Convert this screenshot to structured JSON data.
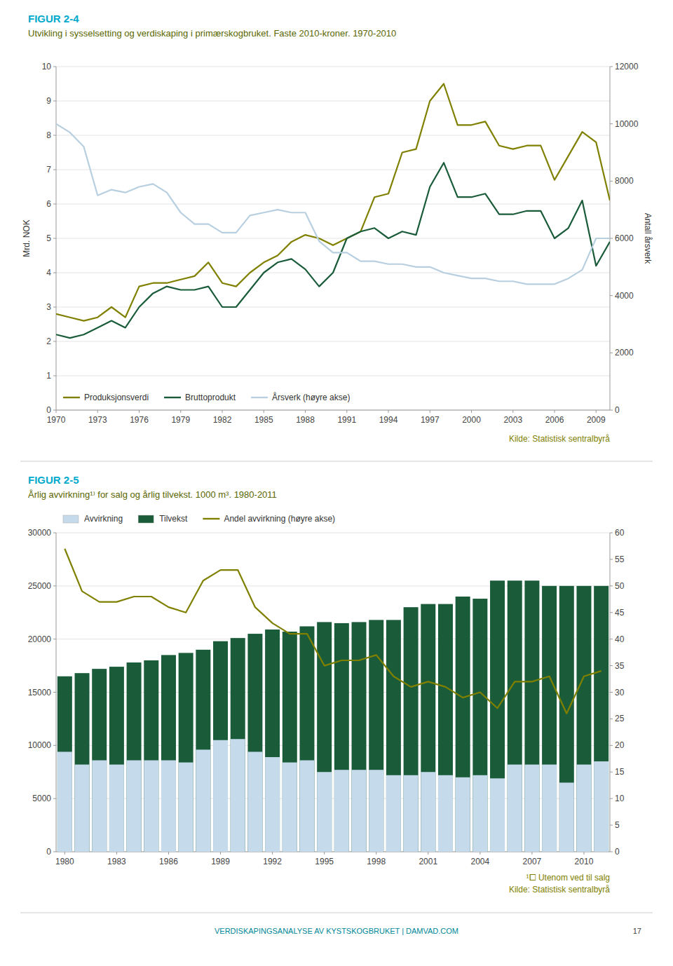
{
  "chart_data": [
    {
      "type": "line",
      "title": "FIGUR 2-4",
      "subtitle": "Utvikling i sysselsetting og verdiskaping i primærskogbruket. Faste 2010-kroner. 1970-2010",
      "x": [
        1970,
        1971,
        1972,
        1973,
        1974,
        1975,
        1976,
        1977,
        1978,
        1979,
        1980,
        1981,
        1982,
        1983,
        1984,
        1985,
        1986,
        1987,
        1988,
        1989,
        1990,
        1991,
        1992,
        1993,
        1994,
        1995,
        1996,
        1997,
        1998,
        1999,
        2000,
        2001,
        2002,
        2003,
        2004,
        2005,
        2006,
        2007,
        2008,
        2009,
        2010
      ],
      "xlim": [
        1970,
        2010
      ],
      "xticks": [
        1970,
        1973,
        1976,
        1979,
        1982,
        1985,
        1988,
        1991,
        1994,
        1997,
        2000,
        2003,
        2006,
        2009
      ],
      "y_label": "Mrd. NOK",
      "y2_label": "Antall årsverk",
      "ylim": [
        0,
        10
      ],
      "yticks": [
        0,
        1,
        2,
        3,
        4,
        5,
        6,
        7,
        8,
        9,
        10
      ],
      "y2lim": [
        0,
        12000
      ],
      "y2ticks": [
        0,
        2000,
        4000,
        6000,
        8000,
        10000,
        12000
      ],
      "grid": true,
      "legend": "lower left",
      "series": [
        {
          "name": "Produksjonsverdi",
          "color": "#808000",
          "values": [
            2.8,
            2.7,
            2.6,
            2.7,
            3.0,
            2.7,
            3.6,
            3.7,
            3.7,
            3.8,
            3.9,
            4.3,
            3.7,
            3.6,
            4.0,
            4.3,
            4.5,
            4.9,
            5.1,
            5.0,
            4.8,
            5.0,
            5.2,
            6.2,
            6.3,
            7.5,
            7.6,
            9.0,
            9.5,
            8.3,
            8.3,
            8.4,
            7.7,
            7.6,
            7.7,
            7.7,
            6.7,
            7.4,
            8.1,
            7.8,
            6.1
          ]
        },
        {
          "name": "Bruttoprodukt",
          "color": "#1a5c3a",
          "values": [
            2.2,
            2.1,
            2.2,
            2.4,
            2.6,
            2.4,
            3.0,
            3.4,
            3.6,
            3.5,
            3.5,
            3.6,
            3.0,
            3.0,
            3.5,
            4.0,
            4.3,
            4.4,
            4.1,
            3.6,
            4.0,
            5.0,
            5.2,
            5.3,
            5.0,
            5.2,
            5.1,
            6.5,
            7.2,
            6.2,
            6.2,
            6.3,
            5.7,
            5.7,
            5.8,
            5.8,
            5.0,
            5.3,
            6.1,
            4.2,
            4.9
          ]
        },
        {
          "name": "Årsverk (høyre akse)",
          "color": "#b8cfe0",
          "axis": "y2",
          "values": [
            10000,
            9700,
            9200,
            7500,
            7700,
            7600,
            7800,
            7900,
            7600,
            6900,
            6500,
            6500,
            6200,
            6200,
            6800,
            6900,
            7000,
            6900,
            6900,
            5900,
            5500,
            5500,
            5200,
            5200,
            5100,
            5100,
            5000,
            5000,
            4800,
            4700,
            4600,
            4600,
            4500,
            4500,
            4400,
            4400,
            4400,
            4600,
            4900,
            6000,
            6000
          ]
        }
      ],
      "annotations": [
        "Kilde: Statistisk sentralbyrå"
      ]
    },
    {
      "type": "bar",
      "title": "FIGUR 2-5",
      "subtitle": "Årlig avvirkning¹⁾ for salg og årlig tilvekst. 1000 m³. 1980-2011",
      "categories": [
        "1980",
        null,
        null,
        "1983",
        null,
        null,
        "1986",
        null,
        null,
        "1989",
        null,
        null,
        "1992",
        null,
        null,
        "1995",
        null,
        null,
        "1998",
        null,
        null,
        "2001",
        null,
        null,
        "2004",
        null,
        null,
        "2007",
        null,
        null,
        "2010",
        null
      ],
      "ylim": [
        0,
        30000
      ],
      "yticks": [
        0,
        5000,
        10000,
        15000,
        20000,
        25000,
        30000
      ],
      "y2lim": [
        0,
        60
      ],
      "y2ticks": [
        0,
        5,
        10,
        15,
        20,
        25,
        30,
        35,
        40,
        45,
        50,
        55,
        60
      ],
      "grid": true,
      "stacked": false,
      "legend": "top",
      "series": [
        {
          "name": "Avvirkning",
          "color": "#c5daea",
          "values": [
            9400,
            8200,
            8600,
            8200,
            8600,
            8600,
            8600,
            8400,
            9600,
            10500,
            10600,
            9400,
            8900,
            8400,
            8600,
            7500,
            7700,
            7700,
            7700,
            7200,
            7200,
            7500,
            7200,
            7000,
            7200,
            6900,
            8200,
            8200,
            8200,
            6500,
            8200,
            8500
          ]
        },
        {
          "name": "Tilvekst",
          "color": "#1a5c3a",
          "values": [
            16500,
            16800,
            17200,
            17400,
            17800,
            18000,
            18500,
            18700,
            19000,
            19800,
            20100,
            20500,
            20900,
            20700,
            21200,
            21600,
            21500,
            21600,
            21800,
            21800,
            23000,
            23300,
            23300,
            24000,
            23800,
            25500,
            25500,
            25500,
            25000,
            25000,
            25000,
            25000
          ]
        },
        {
          "name": "Andel avvirkning (høyre akse)",
          "color": "#808000",
          "type": "line",
          "axis": "y2",
          "values": [
            57,
            49,
            47,
            47,
            48,
            48,
            46,
            45,
            51,
            53,
            53,
            46,
            43,
            41,
            41,
            35,
            36,
            36,
            37,
            33,
            31,
            32,
            31,
            29,
            30,
            27,
            32,
            32,
            33,
            26,
            33,
            34
          ]
        }
      ],
      "annotations": [
        "¹⧠ Utenom ved til salg",
        "Kilde: Statistisk sentralbyrå",
        "VERDISKAPINGSANALYSE AV KYSTSKOGBRUKET | DAMVAD.COM",
        "17"
      ]
    }
  ]
}
